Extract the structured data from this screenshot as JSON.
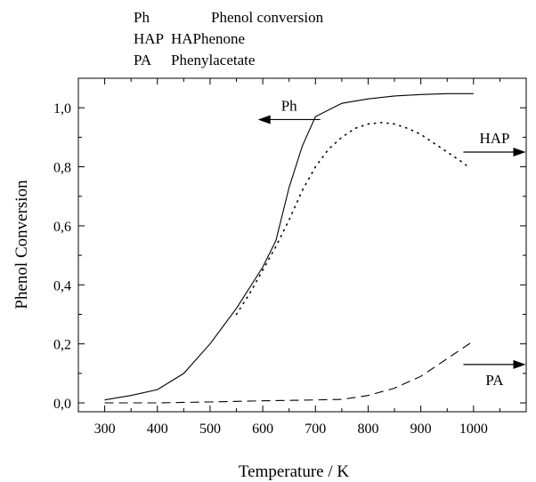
{
  "chart_data": {
    "type": "line",
    "xlabel": "Temperature / K",
    "ylabel": "Phenol Conversion",
    "xlim": [
      250,
      1100
    ],
    "ylim": [
      -0.03,
      1.1
    ],
    "x_ticks": [
      300,
      400,
      500,
      600,
      700,
      800,
      900,
      1000
    ],
    "x_tick_labels": [
      "300",
      "400",
      "500",
      "600",
      "700",
      "800",
      "900",
      "1000"
    ],
    "y_ticks": [
      0.0,
      0.2,
      0.4,
      0.6,
      0.8,
      1.0
    ],
    "y_tick_labels": [
      "0,0",
      "0,2",
      "0,4",
      "0,6",
      "0,8",
      "1,0"
    ],
    "grid": false,
    "legend": {
      "placement": "top",
      "entries": [
        {
          "abbr": "Ph",
          "name": "Phenol conversion"
        },
        {
          "abbr": "HAP",
          "name": "HAPhenone"
        },
        {
          "abbr": "PA",
          "name": "Phenylacetate"
        }
      ]
    },
    "series": [
      {
        "name": "Ph",
        "style": "solid",
        "x": [
          300,
          350,
          400,
          450,
          500,
          550,
          600,
          625,
          650,
          675,
          700,
          750,
          800,
          850,
          900,
          950,
          1000
        ],
        "y": [
          0.01,
          0.025,
          0.045,
          0.1,
          0.2,
          0.32,
          0.46,
          0.55,
          0.73,
          0.87,
          0.97,
          1.015,
          1.03,
          1.04,
          1.045,
          1.048,
          1.048
        ]
      },
      {
        "name": "HAP",
        "style": "dotted",
        "x": [
          550,
          575,
          600,
          625,
          650,
          675,
          700,
          725,
          750,
          775,
          800,
          825,
          850,
          875,
          900,
          925,
          950,
          975,
          990
        ],
        "y": [
          0.3,
          0.37,
          0.45,
          0.53,
          0.62,
          0.72,
          0.8,
          0.86,
          0.9,
          0.93,
          0.945,
          0.95,
          0.945,
          0.93,
          0.91,
          0.88,
          0.85,
          0.82,
          0.8
        ]
      },
      {
        "name": "PA",
        "style": "dashed",
        "x": [
          300,
          400,
          500,
          600,
          700,
          750,
          800,
          850,
          900,
          950,
          1000
        ],
        "y": [
          0.0,
          0.0,
          0.003,
          0.007,
          0.01,
          0.012,
          0.025,
          0.05,
          0.09,
          0.15,
          0.21
        ]
      }
    ],
    "annotations": [
      {
        "text": "Ph",
        "arrow": "left",
        "x": 650,
        "y": 0.96
      },
      {
        "text": "HAP",
        "arrow": "right",
        "x": 1040,
        "y": 0.85
      },
      {
        "text": "PA",
        "arrow": "right",
        "x": 1040,
        "y": 0.13
      }
    ]
  }
}
